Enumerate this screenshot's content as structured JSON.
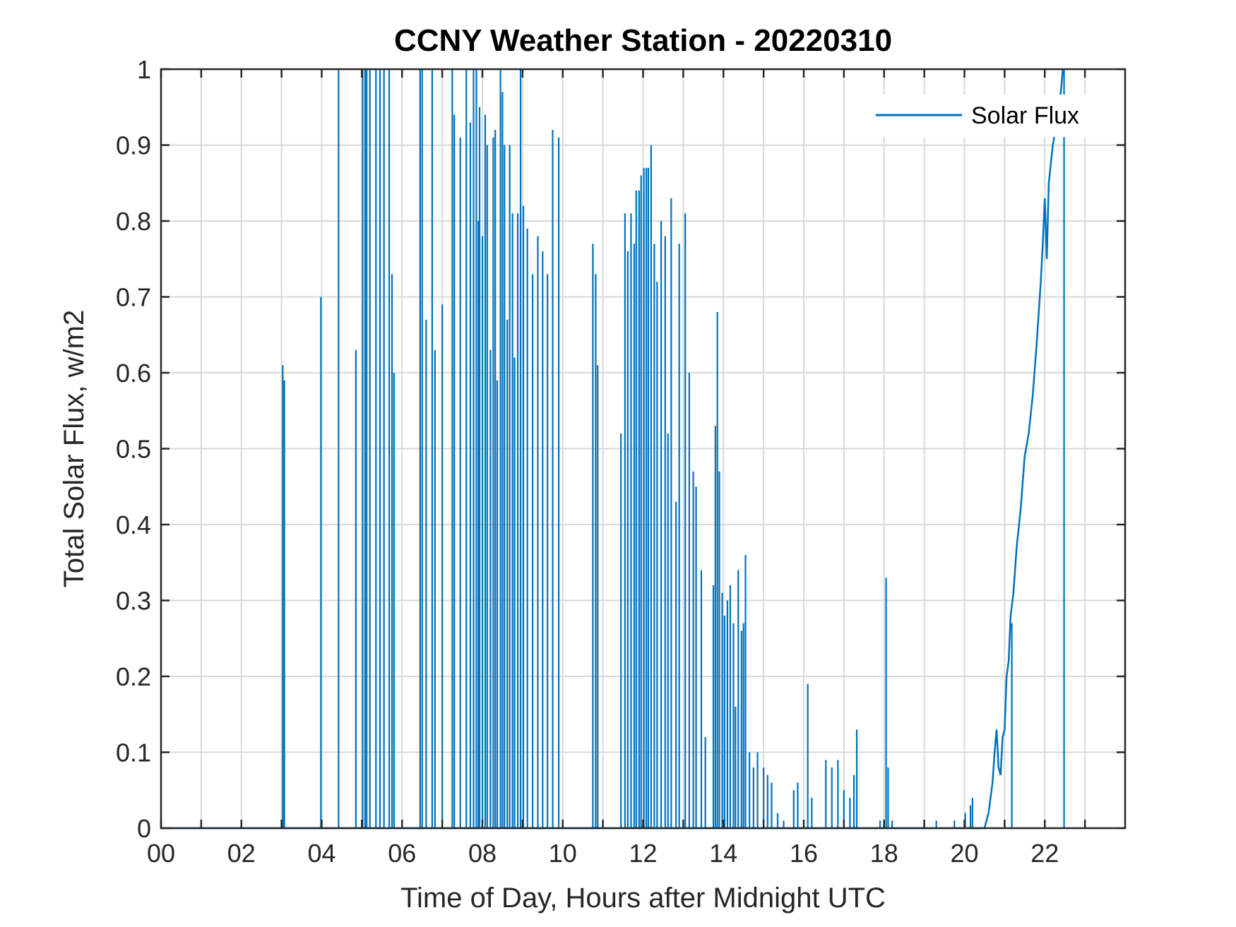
{
  "chart_data": {
    "type": "line",
    "title": "CCNY Weather Station - 20220310",
    "xlabel": "Time of Day, Hours after Midnight UTC",
    "ylabel": "Total Solar Flux, w/m2",
    "xlim": [
      0,
      24
    ],
    "ylim": [
      0,
      1
    ],
    "xticks": [
      0,
      2,
      4,
      6,
      8,
      10,
      12,
      14,
      16,
      18,
      20,
      22
    ],
    "xtick_labels": [
      "00",
      "02",
      "04",
      "06",
      "08",
      "10",
      "12",
      "14",
      "16",
      "18",
      "20",
      "22"
    ],
    "yticks": [
      0,
      0.1,
      0.2,
      0.3,
      0.4,
      0.5,
      0.6,
      0.7,
      0.8,
      0.9,
      1
    ],
    "ytick_labels": [
      "0",
      "0.1",
      "0.2",
      "0.3",
      "0.4",
      "0.5",
      "0.6",
      "0.7",
      "0.8",
      "0.9",
      "1"
    ],
    "grid": true,
    "legend_location": "top-right",
    "series": [
      {
        "name": "Solar Flux",
        "color": "#0072BD",
        "spikes": [
          [
            3.03,
            0.61
          ],
          [
            3.07,
            0.59
          ],
          [
            3.98,
            0.7
          ],
          [
            4.42,
            1.0
          ],
          [
            4.85,
            0.63
          ],
          [
            5.02,
            1.0
          ],
          [
            5.08,
            1.0
          ],
          [
            5.12,
            1.0
          ],
          [
            5.2,
            1.0
          ],
          [
            5.35,
            1.0
          ],
          [
            5.45,
            1.0
          ],
          [
            5.55,
            1.0
          ],
          [
            5.68,
            1.0
          ],
          [
            5.75,
            0.73
          ],
          [
            5.8,
            0.6
          ],
          [
            6.45,
            1.0
          ],
          [
            6.5,
            1.0
          ],
          [
            6.6,
            0.67
          ],
          [
            6.75,
            1.0
          ],
          [
            6.82,
            0.63
          ],
          [
            7.0,
            0.69
          ],
          [
            7.25,
            1.0
          ],
          [
            7.3,
            0.94
          ],
          [
            7.45,
            0.91
          ],
          [
            7.6,
            1.0
          ],
          [
            7.7,
            0.93
          ],
          [
            7.78,
            1.0
          ],
          [
            7.85,
            1.0
          ],
          [
            7.9,
            0.8
          ],
          [
            7.93,
            0.95
          ],
          [
            8.0,
            0.78
          ],
          [
            8.07,
            0.94
          ],
          [
            8.12,
            0.9
          ],
          [
            8.2,
            0.63
          ],
          [
            8.27,
            0.91
          ],
          [
            8.32,
            0.92
          ],
          [
            8.37,
            0.59
          ],
          [
            8.45,
            1.0
          ],
          [
            8.5,
            0.97
          ],
          [
            8.55,
            0.9
          ],
          [
            8.62,
            0.67
          ],
          [
            8.68,
            0.9
          ],
          [
            8.75,
            0.81
          ],
          [
            8.8,
            0.62
          ],
          [
            8.88,
            0.81
          ],
          [
            8.95,
            1.0
          ],
          [
            9.02,
            0.82
          ],
          [
            9.12,
            0.79
          ],
          [
            9.25,
            0.73
          ],
          [
            9.38,
            0.78
          ],
          [
            9.5,
            0.76
          ],
          [
            9.62,
            0.73
          ],
          [
            9.75,
            0.92
          ],
          [
            9.9,
            0.91
          ],
          [
            10.75,
            0.77
          ],
          [
            10.82,
            0.73
          ],
          [
            10.87,
            0.61
          ],
          [
            11.45,
            0.52
          ],
          [
            11.55,
            0.81
          ],
          [
            11.62,
            0.76
          ],
          [
            11.7,
            0.81
          ],
          [
            11.78,
            0.77
          ],
          [
            11.83,
            0.84
          ],
          [
            11.9,
            0.84
          ],
          [
            11.95,
            0.86
          ],
          [
            12.02,
            0.87
          ],
          [
            12.08,
            0.87
          ],
          [
            12.13,
            0.87
          ],
          [
            12.2,
            0.9
          ],
          [
            12.28,
            0.77
          ],
          [
            12.35,
            0.72
          ],
          [
            12.45,
            0.8
          ],
          [
            12.55,
            0.78
          ],
          [
            12.62,
            0.52
          ],
          [
            12.7,
            0.83
          ],
          [
            12.82,
            0.43
          ],
          [
            12.9,
            0.77
          ],
          [
            13.05,
            0.81
          ],
          [
            13.15,
            0.6
          ],
          [
            13.25,
            0.47
          ],
          [
            13.32,
            0.45
          ],
          [
            13.45,
            0.34
          ],
          [
            13.55,
            0.12
          ],
          [
            13.75,
            0.32
          ],
          [
            13.8,
            0.53
          ],
          [
            13.85,
            0.68
          ],
          [
            13.9,
            0.47
          ],
          [
            13.97,
            0.31
          ],
          [
            14.03,
            0.28
          ],
          [
            14.1,
            0.3
          ],
          [
            14.17,
            0.32
          ],
          [
            14.25,
            0.27
          ],
          [
            14.3,
            0.16
          ],
          [
            14.37,
            0.34
          ],
          [
            14.45,
            0.26
          ],
          [
            14.5,
            0.27
          ],
          [
            14.55,
            0.36
          ],
          [
            14.65,
            0.1
          ],
          [
            14.75,
            0.08
          ],
          [
            14.85,
            0.1
          ],
          [
            15.0,
            0.08
          ],
          [
            15.1,
            0.07
          ],
          [
            15.2,
            0.06
          ],
          [
            15.35,
            0.02
          ],
          [
            15.5,
            0.01
          ],
          [
            15.75,
            0.05
          ],
          [
            15.85,
            0.06
          ],
          [
            16.1,
            0.19
          ],
          [
            16.2,
            0.04
          ],
          [
            16.55,
            0.09
          ],
          [
            16.7,
            0.08
          ],
          [
            16.85,
            0.09
          ],
          [
            17.0,
            0.05
          ],
          [
            17.15,
            0.04
          ],
          [
            17.25,
            0.07
          ],
          [
            17.32,
            0.13
          ],
          [
            17.9,
            0.01
          ],
          [
            18.05,
            0.33
          ],
          [
            18.1,
            0.08
          ],
          [
            18.2,
            0.01
          ],
          [
            19.3,
            0.01
          ],
          [
            19.75,
            0.01
          ],
          [
            20.02,
            0.02
          ],
          [
            20.15,
            0.03
          ],
          [
            20.2,
            0.04
          ]
        ],
        "ramp": [
          [
            20.25,
            0.0
          ],
          [
            20.5,
            0.0
          ],
          [
            20.6,
            0.02
          ],
          [
            20.7,
            0.06
          ],
          [
            20.75,
            0.1
          ],
          [
            20.8,
            0.13
          ],
          [
            20.85,
            0.08
          ],
          [
            20.9,
            0.07
          ],
          [
            20.95,
            0.12
          ],
          [
            21.0,
            0.13
          ],
          [
            21.05,
            0.2
          ],
          [
            21.1,
            0.22
          ],
          [
            21.15,
            0.28
          ],
          [
            21.22,
            0.31
          ],
          [
            21.3,
            0.37
          ],
          [
            21.4,
            0.42
          ],
          [
            21.5,
            0.49
          ],
          [
            21.6,
            0.52
          ],
          [
            21.7,
            0.57
          ],
          [
            21.8,
            0.64
          ],
          [
            21.9,
            0.72
          ],
          [
            21.95,
            0.77
          ],
          [
            22.0,
            0.83
          ],
          [
            22.05,
            0.75
          ],
          [
            22.1,
            0.85
          ],
          [
            22.2,
            0.9
          ],
          [
            22.3,
            0.93
          ],
          [
            22.4,
            0.97
          ],
          [
            22.45,
            1.0
          ]
        ],
        "late_spikes": [
          [
            21.18,
            0.27
          ],
          [
            22.48,
            1.0
          ]
        ]
      }
    ]
  }
}
